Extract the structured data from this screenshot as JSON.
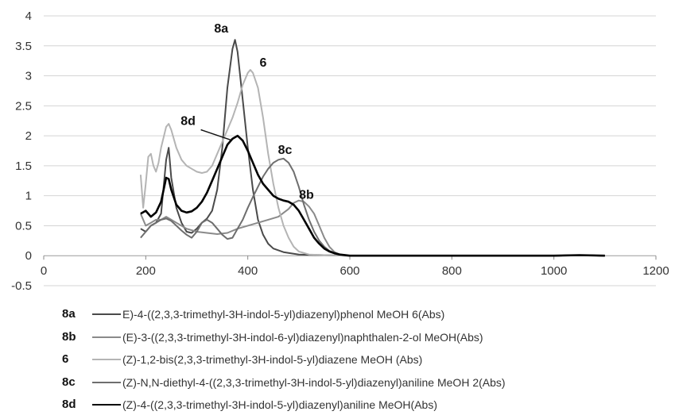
{
  "chart_data": {
    "type": "line",
    "title": "",
    "xlabel": "",
    "ylabel": "",
    "xlim": [
      0,
      1200
    ],
    "ylim": [
      -0.5,
      4
    ],
    "x_ticks": [
      "0",
      "200",
      "400",
      "600",
      "800",
      "1000",
      "1200"
    ],
    "y_ticks": [
      "-0.5",
      "0",
      "0.5",
      "1",
      "1.5",
      "2",
      "2.5",
      "3",
      "3.5",
      "4"
    ],
    "grid": true,
    "legend_position": "bottom",
    "series": [
      {
        "key": "8a",
        "name": "E)-4-((2,3,3-trimethyl-3H-indol-5-yl)diazenyl)phenol MeOH 6(Abs)",
        "color": "#4a4a4a",
        "points": [
          [
            190,
            0.45
          ],
          [
            200,
            0.4
          ],
          [
            210,
            0.5
          ],
          [
            220,
            0.55
          ],
          [
            230,
            0.7
          ],
          [
            240,
            1.6
          ],
          [
            245,
            1.8
          ],
          [
            250,
            1.3
          ],
          [
            260,
            0.8
          ],
          [
            270,
            0.55
          ],
          [
            280,
            0.4
          ],
          [
            290,
            0.38
          ],
          [
            300,
            0.45
          ],
          [
            310,
            0.55
          ],
          [
            320,
            0.62
          ],
          [
            330,
            0.75
          ],
          [
            340,
            1.1
          ],
          [
            350,
            1.8
          ],
          [
            360,
            2.8
          ],
          [
            370,
            3.45
          ],
          [
            375,
            3.6
          ],
          [
            380,
            3.4
          ],
          [
            390,
            2.6
          ],
          [
            400,
            1.8
          ],
          [
            410,
            1.1
          ],
          [
            420,
            0.6
          ],
          [
            430,
            0.35
          ],
          [
            440,
            0.2
          ],
          [
            450,
            0.12
          ],
          [
            470,
            0.06
          ],
          [
            500,
            0.02
          ],
          [
            550,
            0.01
          ],
          [
            600,
            0.0
          ],
          [
            700,
            0.0
          ],
          [
            800,
            0.0
          ],
          [
            900,
            0.0
          ],
          [
            1000,
            0.0
          ],
          [
            1050,
            0.01
          ],
          [
            1100,
            0.0
          ]
        ]
      },
      {
        "key": "8b",
        "name": "(E)-3-((2,3,3-trimethyl-3H-indol-6-yl)diazenyl)naphthalen-2-ol MeOH(Abs)",
        "color": "#8a8a8a",
        "points": [
          [
            190,
            0.7
          ],
          [
            200,
            0.5
          ],
          [
            210,
            0.55
          ],
          [
            220,
            0.6
          ],
          [
            230,
            0.6
          ],
          [
            240,
            0.65
          ],
          [
            250,
            0.6
          ],
          [
            260,
            0.55
          ],
          [
            280,
            0.45
          ],
          [
            300,
            0.4
          ],
          [
            320,
            0.38
          ],
          [
            340,
            0.36
          ],
          [
            360,
            0.38
          ],
          [
            380,
            0.45
          ],
          [
            400,
            0.5
          ],
          [
            420,
            0.55
          ],
          [
            440,
            0.6
          ],
          [
            460,
            0.65
          ],
          [
            480,
            0.78
          ],
          [
            490,
            0.88
          ],
          [
            500,
            0.92
          ],
          [
            510,
            0.9
          ],
          [
            520,
            0.82
          ],
          [
            530,
            0.7
          ],
          [
            540,
            0.5
          ],
          [
            550,
            0.3
          ],
          [
            560,
            0.15
          ],
          [
            570,
            0.06
          ],
          [
            580,
            0.02
          ],
          [
            600,
            0.0
          ],
          [
            700,
            0.0
          ],
          [
            800,
            0.0
          ],
          [
            900,
            0.0
          ],
          [
            1000,
            0.0
          ],
          [
            1050,
            0.01
          ],
          [
            1100,
            0.0
          ]
        ]
      },
      {
        "key": "6",
        "name": "(Z)-1,2-bis(2,3,3-trimethyl-3H-indol-5-yl)diazene MeOH (Abs)",
        "color": "#b4b4b4",
        "points": [
          [
            190,
            1.35
          ],
          [
            195,
            0.8
          ],
          [
            200,
            1.2
          ],
          [
            205,
            1.65
          ],
          [
            210,
            1.7
          ],
          [
            215,
            1.5
          ],
          [
            220,
            1.4
          ],
          [
            225,
            1.55
          ],
          [
            230,
            1.8
          ],
          [
            240,
            2.15
          ],
          [
            245,
            2.2
          ],
          [
            250,
            2.1
          ],
          [
            260,
            1.8
          ],
          [
            270,
            1.6
          ],
          [
            280,
            1.5
          ],
          [
            290,
            1.45
          ],
          [
            300,
            1.4
          ],
          [
            310,
            1.38
          ],
          [
            320,
            1.4
          ],
          [
            330,
            1.5
          ],
          [
            340,
            1.7
          ],
          [
            350,
            1.9
          ],
          [
            360,
            2.1
          ],
          [
            370,
            2.3
          ],
          [
            380,
            2.55
          ],
          [
            390,
            2.85
          ],
          [
            400,
            3.05
          ],
          [
            405,
            3.1
          ],
          [
            410,
            3.05
          ],
          [
            420,
            2.8
          ],
          [
            430,
            2.3
          ],
          [
            440,
            1.7
          ],
          [
            450,
            1.2
          ],
          [
            460,
            0.8
          ],
          [
            470,
            0.5
          ],
          [
            480,
            0.3
          ],
          [
            490,
            0.15
          ],
          [
            500,
            0.07
          ],
          [
            520,
            0.02
          ],
          [
            550,
            0.01
          ],
          [
            600,
            0.0
          ],
          [
            700,
            0.0
          ],
          [
            800,
            0.0
          ],
          [
            900,
            0.0
          ],
          [
            1000,
            0.0
          ],
          [
            1050,
            0.01
          ],
          [
            1100,
            0.0
          ]
        ]
      },
      {
        "key": "8c",
        "name": "(Z)-N,N-diethyl-4-((2,3,3-trimethyl-3H-indol-5-yl)diazenyl)aniline MeOH 2(Abs)",
        "color": "#6e6e6e",
        "points": [
          [
            190,
            0.3
          ],
          [
            200,
            0.4
          ],
          [
            210,
            0.5
          ],
          [
            220,
            0.55
          ],
          [
            230,
            0.6
          ],
          [
            240,
            0.62
          ],
          [
            250,
            0.58
          ],
          [
            260,
            0.5
          ],
          [
            270,
            0.42
          ],
          [
            280,
            0.35
          ],
          [
            290,
            0.3
          ],
          [
            300,
            0.4
          ],
          [
            310,
            0.55
          ],
          [
            320,
            0.6
          ],
          [
            330,
            0.55
          ],
          [
            340,
            0.45
          ],
          [
            350,
            0.35
          ],
          [
            360,
            0.28
          ],
          [
            370,
            0.3
          ],
          [
            380,
            0.45
          ],
          [
            390,
            0.6
          ],
          [
            400,
            0.8
          ],
          [
            410,
            0.98
          ],
          [
            420,
            1.15
          ],
          [
            430,
            1.32
          ],
          [
            440,
            1.45
          ],
          [
            450,
            1.55
          ],
          [
            460,
            1.6
          ],
          [
            470,
            1.62
          ],
          [
            480,
            1.55
          ],
          [
            490,
            1.4
          ],
          [
            500,
            1.15
          ],
          [
            510,
            0.85
          ],
          [
            520,
            0.6
          ],
          [
            530,
            0.4
          ],
          [
            540,
            0.25
          ],
          [
            550,
            0.15
          ],
          [
            560,
            0.08
          ],
          [
            580,
            0.02
          ],
          [
            600,
            0.0
          ],
          [
            700,
            0.0
          ],
          [
            800,
            0.0
          ],
          [
            900,
            0.0
          ],
          [
            1000,
            0.0
          ],
          [
            1050,
            0.01
          ],
          [
            1100,
            0.0
          ]
        ]
      },
      {
        "key": "8d",
        "name": "(Z)-4-((2,3,3-trimethyl-3H-indol-5-yl)diazenyl)aniline MeOH(Abs)",
        "color": "#000000",
        "points": [
          [
            190,
            0.7
          ],
          [
            200,
            0.75
          ],
          [
            210,
            0.65
          ],
          [
            220,
            0.72
          ],
          [
            230,
            0.9
          ],
          [
            240,
            1.3
          ],
          [
            245,
            1.28
          ],
          [
            250,
            1.1
          ],
          [
            260,
            0.85
          ],
          [
            270,
            0.75
          ],
          [
            280,
            0.72
          ],
          [
            290,
            0.74
          ],
          [
            300,
            0.8
          ],
          [
            310,
            0.9
          ],
          [
            320,
            1.05
          ],
          [
            330,
            1.25
          ],
          [
            340,
            1.45
          ],
          [
            350,
            1.65
          ],
          [
            360,
            1.85
          ],
          [
            370,
            1.95
          ],
          [
            380,
            2.0
          ],
          [
            390,
            1.92
          ],
          [
            400,
            1.75
          ],
          [
            410,
            1.55
          ],
          [
            420,
            1.35
          ],
          [
            430,
            1.2
          ],
          [
            440,
            1.1
          ],
          [
            450,
            1.0
          ],
          [
            460,
            0.95
          ],
          [
            470,
            0.92
          ],
          [
            480,
            0.9
          ],
          [
            490,
            0.85
          ],
          [
            500,
            0.75
          ],
          [
            510,
            0.6
          ],
          [
            520,
            0.45
          ],
          [
            530,
            0.3
          ],
          [
            540,
            0.2
          ],
          [
            550,
            0.12
          ],
          [
            560,
            0.07
          ],
          [
            570,
            0.04
          ],
          [
            580,
            0.02
          ],
          [
            600,
            0.0
          ],
          [
            700,
            0.0
          ],
          [
            800,
            0.0
          ],
          [
            900,
            0.0
          ],
          [
            1000,
            0.0
          ],
          [
            1050,
            0.01
          ],
          [
            1100,
            0.0
          ]
        ]
      }
    ],
    "annotations": [
      {
        "text": "8a",
        "x": 348,
        "y": 3.72
      },
      {
        "text": "6",
        "x": 430,
        "y": 3.15
      },
      {
        "text": "8d",
        "x": 283,
        "y": 2.18
      },
      {
        "text": "8c",
        "x": 473,
        "y": 1.7
      },
      {
        "text": "8b",
        "x": 515,
        "y": 0.95
      }
    ]
  }
}
